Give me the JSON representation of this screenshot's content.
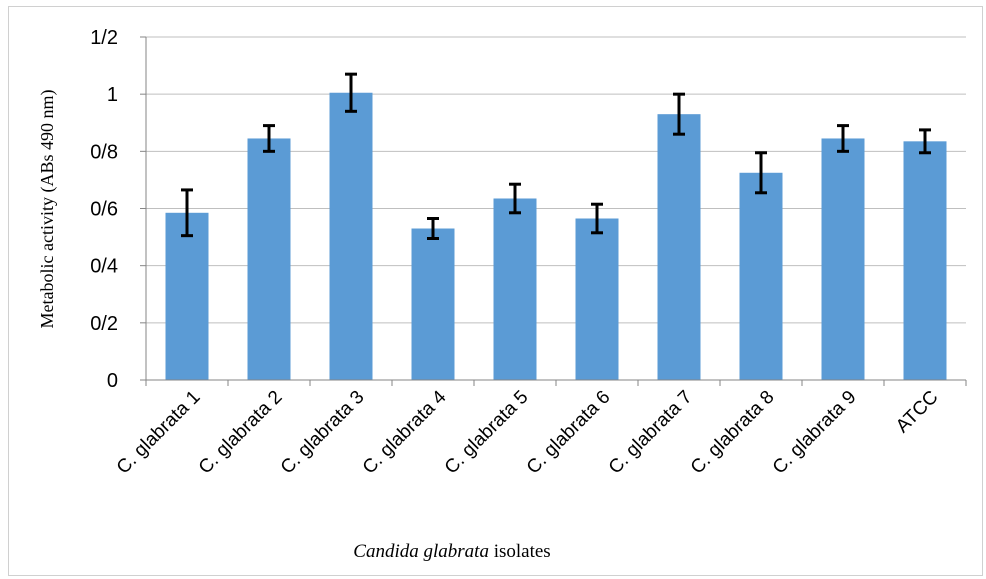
{
  "chart_data": {
    "type": "bar",
    "title": "",
    "xlabel_italic": "Candida glabrata",
    "xlabel_rest": " isolates",
    "ylabel": "Metabolic activity (ABs 490 nm)",
    "ylim": [
      0,
      1.2
    ],
    "yticks": [
      0,
      0.2,
      0.4,
      0.6,
      0.8,
      1,
      1.2
    ],
    "ytick_labels": [
      "0",
      "0/2",
      "0/4",
      "0/6",
      "0/8",
      "1",
      "1/2"
    ],
    "grid": true,
    "bar_color": "#5b9bd5",
    "categories": [
      "C. glabrata 1",
      "C. glabrata 2",
      "C. glabrata 3",
      "C. glabrata 4",
      "C. glabrata 5",
      "C. glabrata 6",
      "C. glabrata 7",
      "C. glabrata 8",
      "C. glabrata 9",
      "ATCC"
    ],
    "values": [
      0.585,
      0.845,
      1.005,
      0.53,
      0.635,
      0.565,
      0.93,
      0.725,
      0.845,
      0.835
    ],
    "errors": [
      0.08,
      0.045,
      0.065,
      0.035,
      0.05,
      0.05,
      0.07,
      0.07,
      0.045,
      0.04
    ]
  }
}
